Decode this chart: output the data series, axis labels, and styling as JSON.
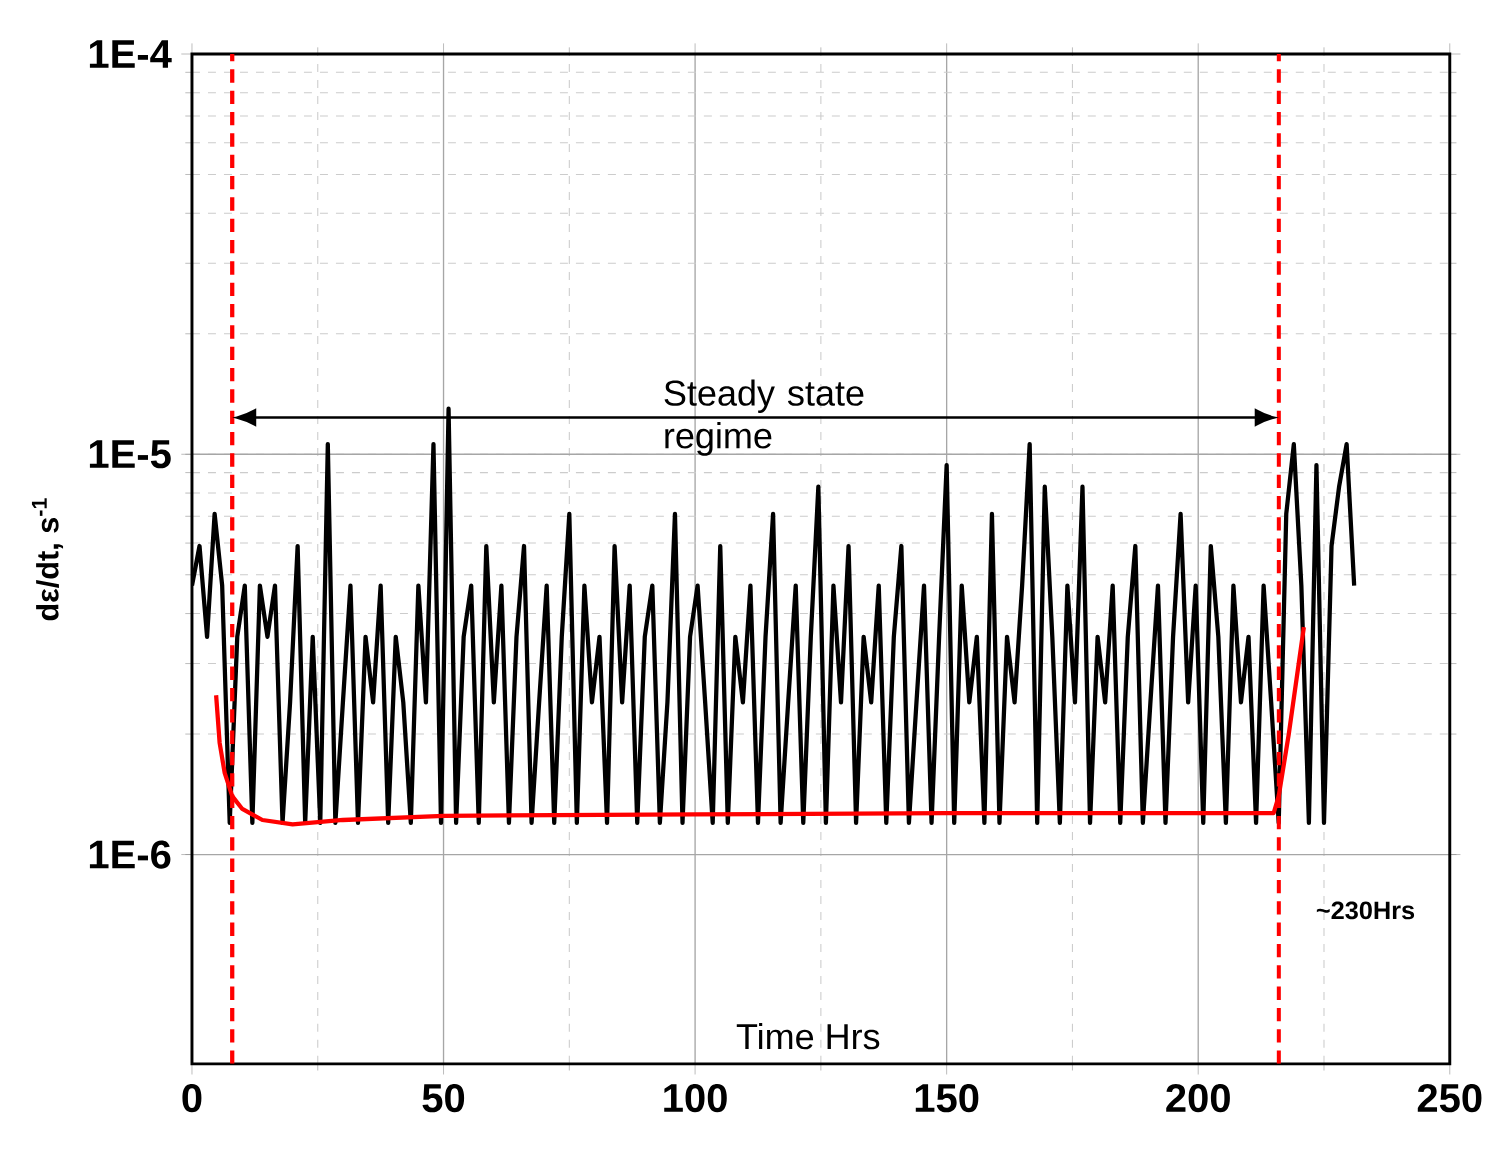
{
  "chart_data": {
    "type": "line",
    "xlabel": "Time Hrs",
    "ylabel": "dε/dt, s$^{-1}$",
    "log": "y",
    "xlim": [
      0,
      250
    ],
    "xticks": [
      0,
      50,
      100,
      150,
      200,
      250
    ],
    "ylim": [
      3e-07,
      0.0001
    ],
    "yticks": [
      {
        "value": 1e-06,
        "label": "1E-6"
      },
      {
        "value": 1e-05,
        "label": "1E-5"
      },
      {
        "value": 0.0001,
        "label": "1E-4"
      }
    ],
    "grid": true,
    "marker": "none",
    "line_style": "solid",
    "series": [
      {
        "color": "#000000",
        "x": [
          0,
          1.5,
          3,
          4.5,
          6,
          7.5,
          9,
          10.5,
          12,
          13.5,
          15,
          16.5,
          18,
          19.5,
          21,
          22.5,
          24,
          25.5,
          27,
          28.5,
          30,
          31.5,
          33,
          34.5,
          36,
          37.5,
          39,
          40.5,
          42,
          43.5,
          45,
          46.5,
          48,
          49.5,
          51,
          52.5,
          54,
          55.5,
          57,
          58.5,
          60,
          61.5,
          63,
          64.5,
          66,
          67.5,
          69,
          70.5,
          72,
          73.5,
          75,
          76.5,
          78,
          79.5,
          81,
          82.5,
          84,
          85.5,
          87,
          88.5,
          90,
          91.5,
          93,
          94.5,
          96,
          97.5,
          99,
          100.5,
          102,
          103.5,
          105,
          106.5,
          108,
          109.5,
          111,
          112.5,
          114,
          115.5,
          117,
          118.5,
          120,
          121.5,
          123,
          124.5,
          126,
          127.5,
          129,
          130.5,
          132,
          133.5,
          135,
          136.5,
          138,
          139.5,
          141,
          142.5,
          144,
          145.5,
          147,
          148.5,
          150,
          151.5,
          153,
          154.5,
          156,
          157.5,
          159,
          160.5,
          162,
          163.5,
          165,
          166.5,
          168,
          169.5,
          171,
          172.5,
          174,
          175.5,
          177,
          178.5,
          180,
          181.5,
          183,
          184.5,
          186,
          187.5,
          189,
          190.5,
          192,
          193.5,
          195,
          196.5,
          198,
          199.5,
          201,
          202.5,
          204,
          205.5,
          207,
          208.5,
          210,
          211.5,
          213,
          214.5,
          216,
          217.5,
          219,
          220.5,
          222,
          223.5,
          225,
          226.5,
          228,
          229.5,
          231
        ],
        "values": [
          4.7e-06,
          5.9e-06,
          3.5e-06,
          7.1e-06,
          4.7e-06,
          1.2e-06,
          3.5e-06,
          4.7e-06,
          1.2e-06,
          4.7e-06,
          3.5e-06,
          4.7e-06,
          1.2e-06,
          2.4e-06,
          5.9e-06,
          1.2e-06,
          3.5e-06,
          1.2e-06,
          1.06e-05,
          1.2e-06,
          2.4e-06,
          4.7e-06,
          1.2e-06,
          3.5e-06,
          2.4e-06,
          4.7e-06,
          1.2e-06,
          3.5e-06,
          2.4e-06,
          1.2e-06,
          4.7e-06,
          2.4e-06,
          1.06e-05,
          1.2e-06,
          1.3e-05,
          1.2e-06,
          3.5e-06,
          4.7e-06,
          1.2e-06,
          5.9e-06,
          2.4e-06,
          4.7e-06,
          1.2e-06,
          3.5e-06,
          5.9e-06,
          1.2e-06,
          2.4e-06,
          4.7e-06,
          1.2e-06,
          3.5e-06,
          7.1e-06,
          1.2e-06,
          4.7e-06,
          2.4e-06,
          3.5e-06,
          1.2e-06,
          5.9e-06,
          2.4e-06,
          4.7e-06,
          1.2e-06,
          3.5e-06,
          4.7e-06,
          1.2e-06,
          2.4e-06,
          7.1e-06,
          1.2e-06,
          3.5e-06,
          4.7e-06,
          2.4e-06,
          1.2e-06,
          5.9e-06,
          1.2e-06,
          3.5e-06,
          2.4e-06,
          4.7e-06,
          1.2e-06,
          3.5e-06,
          7.1e-06,
          1.2e-06,
          2.4e-06,
          4.7e-06,
          1.2e-06,
          3.5e-06,
          8.3e-06,
          1.2e-06,
          4.7e-06,
          2.4e-06,
          5.9e-06,
          1.2e-06,
          3.5e-06,
          2.4e-06,
          4.7e-06,
          1.2e-06,
          3.5e-06,
          5.9e-06,
          1.2e-06,
          2.4e-06,
          4.7e-06,
          1.2e-06,
          3.5e-06,
          9.4e-06,
          1.2e-06,
          4.7e-06,
          2.4e-06,
          3.5e-06,
          1.2e-06,
          7.1e-06,
          1.2e-06,
          3.5e-06,
          2.4e-06,
          4.7e-06,
          1.06e-05,
          1.2e-06,
          8.3e-06,
          3.5e-06,
          1.2e-06,
          4.7e-06,
          2.4e-06,
          8.3e-06,
          1.2e-06,
          3.5e-06,
          2.4e-06,
          4.7e-06,
          1.2e-06,
          3.5e-06,
          5.9e-06,
          1.2e-06,
          2.4e-06,
          4.7e-06,
          1.2e-06,
          3.5e-06,
          7.1e-06,
          2.4e-06,
          4.7e-06,
          1.2e-06,
          5.9e-06,
          3.5e-06,
          1.2e-06,
          4.7e-06,
          2.4e-06,
          3.5e-06,
          1.2e-06,
          4.7e-06,
          2.4e-06,
          1.2e-06,
          7.1e-06,
          1.06e-05,
          4.7e-06,
          1.2e-06,
          9.4e-06,
          1.2e-06,
          5.9e-06,
          8.3e-06,
          1.06e-05,
          4.7e-06
        ]
      },
      {
        "color": "#ff0000",
        "x": [
          4.8,
          5.5,
          6.5,
          8,
          10,
          14,
          20,
          30,
          50,
          100,
          150,
          200,
          215,
          216,
          218,
          221
        ],
        "values": [
          2.5e-06,
          1.9e-06,
          1.6e-06,
          1.4e-06,
          1.3e-06,
          1.22e-06,
          1.19e-06,
          1.22e-06,
          1.25e-06,
          1.26e-06,
          1.27e-06,
          1.27e-06,
          1.27e-06,
          1.4e-06,
          2e-06,
          3.7e-06
        ]
      }
    ],
    "ref_lines": [
      {
        "axis": "x",
        "value": 8,
        "color": "#ff0000",
        "line_style": "dashed"
      },
      {
        "axis": "x",
        "value": 216,
        "color": "#ff0000",
        "line_style": "dashed"
      }
    ],
    "annotations": [
      "Steady state regime",
      "~230Hrs"
    ]
  }
}
